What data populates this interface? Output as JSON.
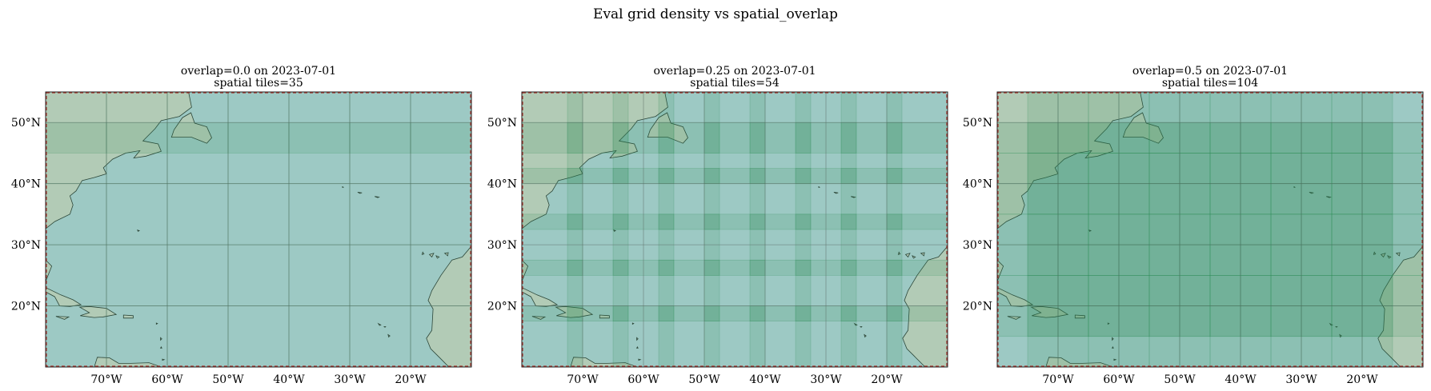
{
  "figure": {
    "title": "Eval grid density vs spatial_overlap"
  },
  "colors": {
    "ocean": "#b1d4d7",
    "land": "#c9d6c7",
    "tile_fill": "#2e8b57",
    "coast": "#2b3a33",
    "gridline": "#5c6b66",
    "extent_border": "#a0332b"
  },
  "chart_data": [
    {
      "type": "heatmap",
      "title": "overlap=0.0 on 2023-07-01",
      "subtitle": "spatial tiles=35",
      "overlap": 0.0,
      "spatial_tiles": 35,
      "xlim": [
        -80,
        -10
      ],
      "ylim": [
        10,
        55
      ],
      "x_ticks": [
        -70,
        -60,
        -50,
        -40,
        -30,
        -20
      ],
      "x_tick_labels": [
        "70°W",
        "60°W",
        "50°W",
        "40°W",
        "30°W",
        "20°W"
      ],
      "y_ticks": [
        20,
        30,
        40,
        50
      ],
      "y_tick_labels": [
        "20°N",
        "30°N",
        "40°N",
        "50°N"
      ],
      "grid": true,
      "tile_size_deg": 10,
      "tile_stride_deg": 10,
      "tile_origin": [
        -80,
        10
      ],
      "tile_rows_y": [
        10,
        20,
        30,
        40,
        45
      ],
      "tile_cols_x": [
        -80,
        -70,
        -60,
        -50,
        -40,
        -30,
        -20
      ]
    },
    {
      "type": "heatmap",
      "title": "overlap=0.25 on 2023-07-01",
      "subtitle": "spatial tiles=54",
      "overlap": 0.25,
      "spatial_tiles": 54,
      "xlim": [
        -80,
        -10
      ],
      "ylim": [
        10,
        55
      ],
      "x_ticks": [
        -70,
        -60,
        -50,
        -40,
        -30,
        -20
      ],
      "x_tick_labels": [
        "70°W",
        "60°W",
        "50°W",
        "40°W",
        "30°W",
        "20°W"
      ],
      "y_ticks": [
        20,
        30,
        40,
        50
      ],
      "y_tick_labels": [
        "20°N",
        "30°N",
        "40°N",
        "50°N"
      ],
      "grid": true,
      "tile_size_deg": 10,
      "tile_stride_deg": 7.5,
      "tile_origin": [
        -80,
        10
      ],
      "tile_rows_y": [
        10,
        17.5,
        25,
        32.5,
        40,
        45
      ],
      "tile_cols_x": [
        -80,
        -72.5,
        -65,
        -57.5,
        -50,
        -42.5,
        -35,
        -27.5,
        -20
      ]
    },
    {
      "type": "heatmap",
      "title": "overlap=0.5 on 2023-07-01",
      "subtitle": "spatial tiles=104",
      "overlap": 0.5,
      "spatial_tiles": 104,
      "xlim": [
        -80,
        -10
      ],
      "ylim": [
        10,
        55
      ],
      "x_ticks": [
        -70,
        -60,
        -50,
        -40,
        -30,
        -20
      ],
      "x_tick_labels": [
        "70°W",
        "60°W",
        "50°W",
        "40°W",
        "30°W",
        "20°W"
      ],
      "y_ticks": [
        20,
        30,
        40,
        50
      ],
      "y_tick_labels": [
        "20°N",
        "30°N",
        "40°N",
        "50°N"
      ],
      "grid": true,
      "tile_size_deg": 10,
      "tile_stride_deg": 5,
      "tile_origin": [
        -80,
        10
      ],
      "tile_rows_y": [
        10,
        15,
        20,
        25,
        30,
        35,
        40,
        45
      ],
      "tile_cols_x": [
        -80,
        -75,
        -70,
        -65,
        -60,
        -55,
        -50,
        -45,
        -40,
        -35,
        -30,
        -25,
        -20
      ]
    }
  ]
}
